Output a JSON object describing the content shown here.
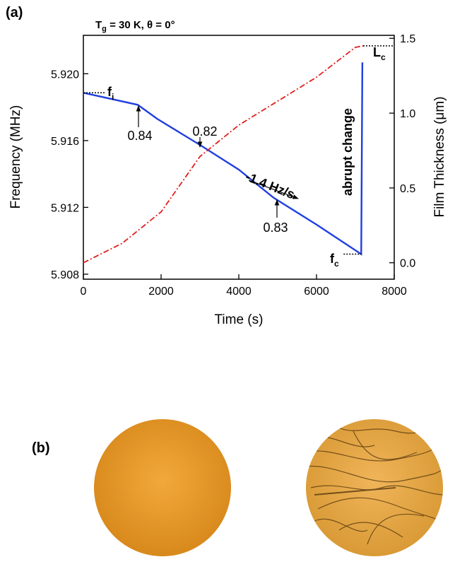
{
  "figure": {
    "panel_a": "(a)",
    "panel_b": "(b)"
  },
  "chart_data": {
    "type": "line",
    "title": {
      "main": "T",
      "sub": "g",
      "rest": " = 30 K, θ = 0°"
    },
    "x_label": "Time (s)",
    "y_label": "Frequency (MHz)",
    "y2_label": "Film Thickness (μm)",
    "xlim": [
      0,
      8000
    ],
    "xticks": [
      0,
      2000,
      4000,
      6000,
      8000
    ],
    "ylim": [
      5.9077,
      5.9223
    ],
    "yticks": [
      5.908,
      5.912,
      5.916,
      {
        "value": 5.92,
        "label": "5.920"
      }
    ],
    "y2lim": [
      -0.11,
      1.52
    ],
    "y2ticks": [
      {
        "value": 0,
        "label": "0.0"
      },
      0.5,
      {
        "value": 1,
        "label": "1.0"
      },
      1.5
    ],
    "series": [
      {
        "color": "#1f3fe0",
        "x": [
          0,
          1400,
          1900,
          3000,
          4000,
          4900,
          6000,
          7150,
          7180
        ],
        "values": [
          5.91886,
          5.91814,
          5.9173,
          5.91574,
          5.91426,
          5.91257,
          5.91097,
          5.9092,
          5.92068
        ]
      },
      {
        "color": "#e02020",
        "axis": "y2",
        "x": [
          0,
          1000,
          2000,
          3000,
          4000,
          5000,
          6000,
          7000,
          7200
        ],
        "values": [
          0,
          0.13,
          0.34,
          0.71,
          0.92,
          1.08,
          1.24,
          1.44,
          1.45
        ]
      }
    ],
    "annotations": [
      {
        "text": "f",
        "sub": "i"
      },
      {
        "text": "f",
        "sub": "c"
      },
      {
        "text": "L",
        "sub": "c"
      },
      {
        "text": "0.84"
      },
      {
        "text": "0.82"
      },
      {
        "text": "0.83"
      },
      {
        "text": "-1.4 Hz/s"
      },
      {
        "text": "abrupt change"
      }
    ]
  }
}
